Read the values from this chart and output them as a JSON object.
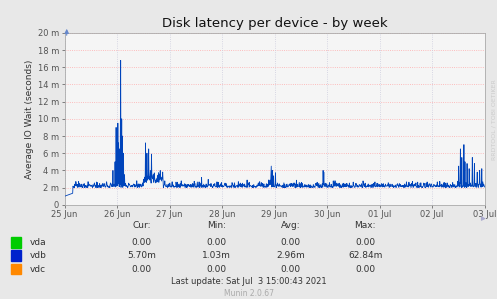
{
  "title": "Disk latency per device - by week",
  "ylabel": "Average IO Wait (seconds)",
  "background_color": "#e8e8e8",
  "plot_bg_color": "#f5f5f5",
  "grid_color_h": "#ffaaaa",
  "grid_color_v": "#ccccdd",
  "line_color": "#0044bb",
  "ylim": [
    0,
    0.02
  ],
  "ytick_labels": [
    "0",
    "2 m",
    "4 m",
    "6 m",
    "8 m",
    "10 m",
    "12 m",
    "14 m",
    "16 m",
    "18 m",
    "20 m"
  ],
  "ytick_values": [
    0.0,
    0.002,
    0.004,
    0.006,
    0.008,
    0.01,
    0.012,
    0.014,
    0.016,
    0.018,
    0.02
  ],
  "xtick_labels": [
    "25 Jun",
    "26 Jun",
    "27 Jun",
    "28 Jun",
    "29 Jun",
    "30 Jun",
    "01 Jul",
    "02 Jul",
    "03 Jul"
  ],
  "legend_items": [
    {
      "label": "vda",
      "color": "#00cc00"
    },
    {
      "label": "vdb",
      "color": "#0022cc"
    },
    {
      "label": "vdc",
      "color": "#ff8800"
    }
  ],
  "table_headers": [
    "Cur:",
    "Min:",
    "Avg:",
    "Max:"
  ],
  "table_data": [
    [
      "0.00",
      "0.00",
      "0.00",
      "0.00"
    ],
    [
      "5.70m",
      "1.03m",
      "2.96m",
      "62.84m"
    ],
    [
      "0.00",
      "0.00",
      "0.00",
      "0.00"
    ]
  ],
  "last_update": "Last update: Sat Jul  3 15:00:43 2021",
  "munin_version": "Munin 2.0.67",
  "rrdtool_text": "RRDTOOL / TOBI OETIKER"
}
